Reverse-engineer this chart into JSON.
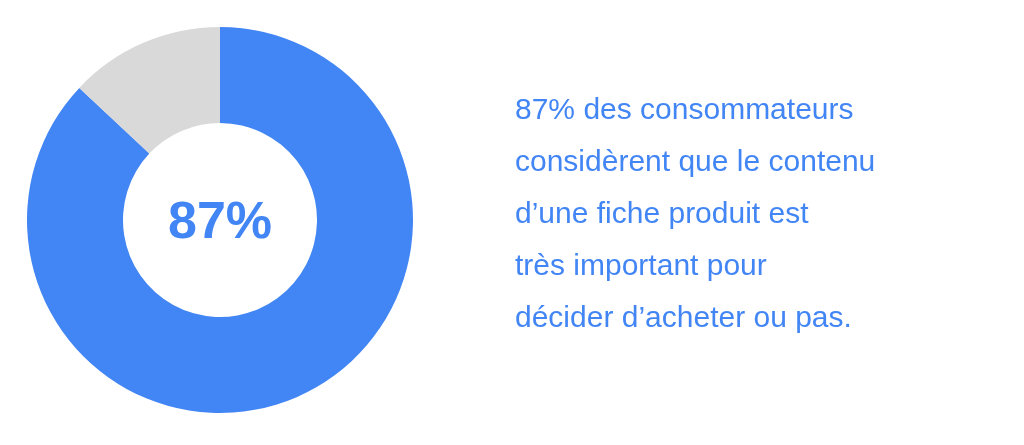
{
  "chart_data": {
    "type": "donut",
    "categories": [
      null,
      null
    ],
    "values": [
      87,
      13
    ],
    "colors": [
      "#4285f4",
      "#d9d9d9"
    ],
    "annotations": [
      "87%",
      "87% des consommateurs\nconsidèrent que le contenu\nd’une fiche produit est\ntrès important pour\ndécider d’acheter ou pas."
    ]
  }
}
